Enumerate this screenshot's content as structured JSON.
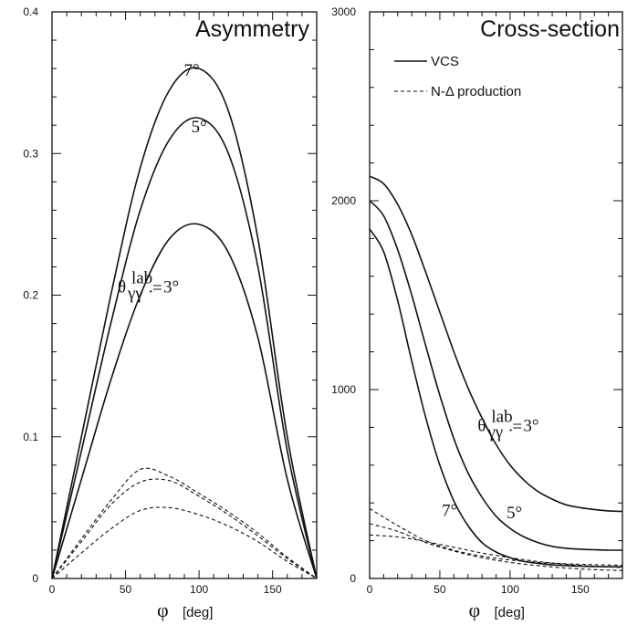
{
  "chart_data": [
    {
      "type": "line",
      "title": "Asymmetry",
      "xlabel_symbol": "φ",
      "xlabel_unit": "[deg]",
      "xlim": [
        0,
        180
      ],
      "ylim": [
        0,
        0.4
      ],
      "xticks": [
        "0",
        "50",
        "100",
        "150"
      ],
      "yticks": [
        "0",
        "0.1",
        "0.2",
        "0.3",
        "0.4"
      ],
      "grid": false,
      "series": [
        {
          "name": "7°",
          "style": "solid",
          "x": [
            0,
            20,
            40,
            60,
            80,
            100,
            120,
            140,
            160,
            180
          ],
          "y": [
            0,
            0.1,
            0.2,
            0.29,
            0.345,
            0.36,
            0.33,
            0.24,
            0.1,
            0
          ]
        },
        {
          "name": "5°",
          "style": "solid",
          "x": [
            0,
            20,
            40,
            60,
            80,
            100,
            120,
            140,
            160,
            180
          ],
          "y": [
            0,
            0.09,
            0.18,
            0.26,
            0.31,
            0.325,
            0.3,
            0.22,
            0.09,
            0
          ]
        },
        {
          "name": "3°",
          "style": "solid",
          "x": [
            0,
            20,
            40,
            60,
            80,
            100,
            120,
            140,
            160,
            180
          ],
          "y": [
            0,
            0.07,
            0.14,
            0.2,
            0.24,
            0.25,
            0.23,
            0.17,
            0.07,
            0
          ]
        },
        {
          "style": "dashed",
          "x": [
            0,
            20,
            40,
            60,
            80,
            100,
            120,
            140,
            160,
            180
          ],
          "y": [
            0,
            0.028,
            0.055,
            0.077,
            0.072,
            0.06,
            0.047,
            0.032,
            0.015,
            0
          ]
        },
        {
          "style": "dashed",
          "x": [
            0,
            20,
            40,
            60,
            80,
            100,
            120,
            140,
            160,
            180
          ],
          "y": [
            0,
            0.026,
            0.052,
            0.068,
            0.069,
            0.058,
            0.045,
            0.03,
            0.014,
            0
          ]
        },
        {
          "style": "dashed",
          "x": [
            0,
            20,
            40,
            60,
            80,
            100,
            120,
            140,
            160,
            180
          ],
          "y": [
            0,
            0.018,
            0.035,
            0.048,
            0.05,
            0.045,
            0.037,
            0.026,
            0.012,
            0
          ]
        }
      ],
      "annotations": [
        {
          "text": "7°",
          "x": 95,
          "y": 0.355
        },
        {
          "text": "5°",
          "x": 100,
          "y": 0.315
        },
        {
          "text": "3°",
          "x": 103,
          "y": 0.202,
          "prefix": "θ",
          "sub": "γγ",
          "prime": "·",
          "sup": "lab",
          "eq": "="
        }
      ]
    },
    {
      "type": "line",
      "title": "Cross-section",
      "xlabel_symbol": "φ",
      "xlabel_unit": "[deg]",
      "xlim": [
        0,
        180
      ],
      "ylim": [
        0,
        3000
      ],
      "xticks": [
        "0",
        "50",
        "100",
        "150"
      ],
      "yticks": [
        "0",
        "1000",
        "2000",
        "3000"
      ],
      "grid": false,
      "legend": {
        "position": "top-left",
        "entries": [
          {
            "label": "VCS",
            "style": "solid"
          },
          {
            "label": "N-Δ production",
            "style": "dashed"
          }
        ]
      },
      "series": [
        {
          "name": "3°",
          "style": "solid",
          "x": [
            0,
            10,
            20,
            30,
            40,
            50,
            60,
            70,
            80,
            90,
            100,
            110,
            120,
            130,
            140,
            150,
            160,
            170,
            180
          ],
          "y": [
            2130,
            2090,
            1980,
            1820,
            1620,
            1410,
            1200,
            1010,
            850,
            710,
            600,
            520,
            460,
            420,
            390,
            375,
            365,
            358,
            355
          ]
        },
        {
          "name": "5°",
          "style": "solid",
          "x": [
            0,
            10,
            20,
            30,
            40,
            50,
            60,
            70,
            80,
            90,
            100,
            110,
            120,
            130,
            140,
            150,
            160,
            170,
            180
          ],
          "y": [
            2000,
            1920,
            1740,
            1500,
            1230,
            970,
            740,
            560,
            430,
            330,
            265,
            220,
            190,
            170,
            160,
            155,
            152,
            150,
            150
          ]
        },
        {
          "name": "7°",
          "style": "solid",
          "x": [
            0,
            10,
            20,
            30,
            40,
            50,
            60,
            70,
            80,
            90,
            100,
            110,
            120,
            130,
            140,
            150,
            160,
            170,
            180
          ],
          "y": [
            1850,
            1730,
            1470,
            1150,
            850,
            600,
            410,
            280,
            190,
            140,
            110,
            90,
            80,
            72,
            68,
            65,
            63,
            62,
            62
          ]
        },
        {
          "style": "dashed",
          "x": [
            0,
            20,
            40,
            60,
            80,
            100,
            120,
            140,
            160,
            180
          ],
          "y": [
            370,
            280,
            200,
            150,
            118,
            98,
            85,
            78,
            73,
            70
          ]
        },
        {
          "style": "dashed",
          "x": [
            0,
            20,
            40,
            60,
            80,
            100,
            120,
            140,
            160,
            180
          ],
          "y": [
            290,
            250,
            190,
            145,
            110,
            85,
            68,
            55,
            47,
            42
          ]
        },
        {
          "style": "dashed",
          "x": [
            0,
            20,
            40,
            60,
            80,
            100,
            120,
            140,
            160,
            180
          ],
          "y": [
            230,
            220,
            195,
            165,
            135,
            110,
            90,
            75,
            65,
            58
          ]
        }
      ],
      "annotations": [
        {
          "text": "3°",
          "x": 138,
          "y": 780,
          "prefix": "θ",
          "sub": "γγ",
          "prime": "·",
          "sup": "lab",
          "eq": "="
        },
        {
          "text": "7°",
          "x": 57,
          "y": 330
        },
        {
          "text": "5°",
          "x": 103,
          "y": 320
        }
      ]
    }
  ]
}
